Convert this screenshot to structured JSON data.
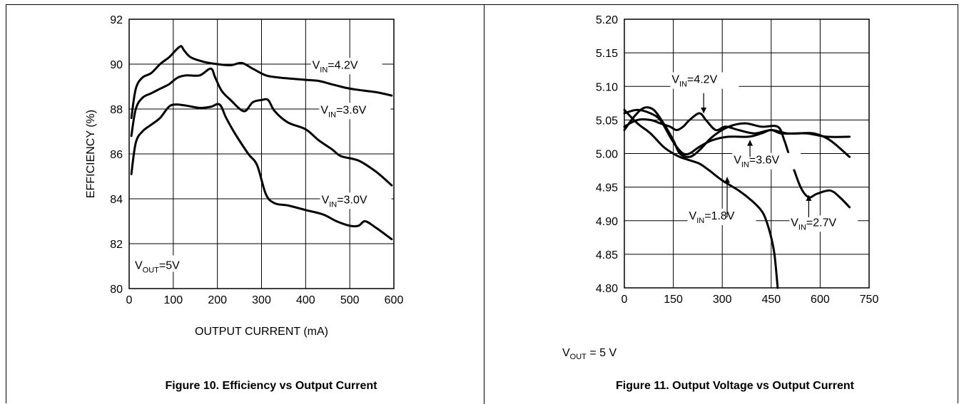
{
  "chart_data": [
    {
      "type": "line",
      "xlabel": "OUTPUT CURRENT (mA)",
      "ylabel": "EFFICIENCY (%)",
      "xlim": [
        0,
        600
      ],
      "ylim": [
        80,
        92
      ],
      "x_ticks": [
        "0",
        "100",
        "200",
        "300",
        "400",
        "500",
        "600"
      ],
      "y_ticks": [
        "80",
        "82",
        "84",
        "86",
        "88",
        "90",
        "92"
      ],
      "grid": true,
      "annotation": {
        "main": "V",
        "sub": "OUT",
        "rest": "=5V"
      },
      "series": [
        {
          "name_main": "V",
          "name_sub": "IN",
          "name_rest": "=4.2V",
          "x": [
            5,
            15,
            30,
            50,
            70,
            90,
            100,
            110,
            118,
            125,
            140,
            170,
            200,
            230,
            255,
            280,
            310,
            340,
            370,
            400,
            430,
            460,
            490,
            520,
            560,
            595
          ],
          "y": [
            87.6,
            88.9,
            89.4,
            89.6,
            90.0,
            90.3,
            90.5,
            90.7,
            90.8,
            90.6,
            90.3,
            90.1,
            90.0,
            89.95,
            90.05,
            89.8,
            89.5,
            89.4,
            89.35,
            89.3,
            89.25,
            89.1,
            88.95,
            88.85,
            88.75,
            88.6
          ]
        },
        {
          "name_main": "V",
          "name_sub": "IN",
          "name_rest": "=3.6V",
          "x": [
            5,
            15,
            30,
            50,
            70,
            90,
            110,
            130,
            160,
            185,
            195,
            210,
            230,
            260,
            280,
            300,
            315,
            330,
            360,
            400,
            430,
            460,
            480,
            520,
            560,
            595
          ],
          "y": [
            86.8,
            88.0,
            88.5,
            88.7,
            88.9,
            89.1,
            89.4,
            89.5,
            89.5,
            89.8,
            89.4,
            88.8,
            88.4,
            87.9,
            88.3,
            88.4,
            88.4,
            87.9,
            87.4,
            87.1,
            86.6,
            86.2,
            85.9,
            85.7,
            85.2,
            84.6
          ]
        },
        {
          "name_main": "V",
          "name_sub": "IN",
          "name_rest": "=3.0V",
          "x": [
            5,
            15,
            30,
            50,
            70,
            90,
            105,
            130,
            160,
            185,
            205,
            220,
            240,
            270,
            290,
            310,
            330,
            360,
            400,
            440,
            470,
            500,
            520,
            535,
            560,
            595
          ],
          "y": [
            85.1,
            86.5,
            87.0,
            87.3,
            87.6,
            88.1,
            88.2,
            88.15,
            88.05,
            88.1,
            88.2,
            87.6,
            86.9,
            86.0,
            85.5,
            84.2,
            83.8,
            83.7,
            83.5,
            83.3,
            83.0,
            82.8,
            82.8,
            83.0,
            82.7,
            82.2
          ]
        }
      ]
    },
    {
      "type": "line",
      "xlabel": "",
      "ylabel": "",
      "xlim": [
        0,
        750
      ],
      "ylim": [
        4.8,
        5.2
      ],
      "x_ticks": [
        "0",
        "150",
        "300",
        "450",
        "600",
        "750"
      ],
      "y_ticks": [
        "4.80",
        "4.85",
        "4.90",
        "4.95",
        "5.00",
        "5.05",
        "5.10",
        "5.15",
        "5.20"
      ],
      "grid": true,
      "series": [
        {
          "name_main": "V",
          "name_sub": "IN",
          "name_rest": "=4.2V",
          "x": [
            0,
            40,
            80,
            110,
            140,
            160,
            180,
            200,
            230,
            250,
            280,
            310,
            350,
            400,
            450,
            500,
            560,
            620,
            690
          ],
          "y": [
            5.04,
            5.05,
            5.05,
            5.045,
            5.04,
            5.035,
            5.04,
            5.05,
            5.06,
            5.05,
            5.035,
            5.04,
            5.035,
            5.03,
            5.035,
            5.03,
            5.03,
            5.025,
            5.025
          ]
        },
        {
          "name_main": "V",
          "name_sub": "IN",
          "name_rest": "=3.6V",
          "x": [
            0,
            40,
            80,
            110,
            140,
            160,
            180,
            200,
            230,
            270,
            320,
            380,
            420,
            450,
            480,
            530,
            580,
            630,
            690
          ],
          "y": [
            5.06,
            5.065,
            5.06,
            5.05,
            5.025,
            5.01,
            5.0,
            5.0,
            5.01,
            5.02,
            5.025,
            5.025,
            5.03,
            5.035,
            5.03,
            5.03,
            5.03,
            5.02,
            4.995
          ]
        },
        {
          "name_main": "V",
          "name_sub": "IN",
          "name_rest": "=2.7V",
          "x": [
            0,
            30,
            60,
            90,
            120,
            150,
            170,
            200,
            230,
            270,
            320,
            370,
            420,
            470,
            490,
            510,
            540,
            565,
            590,
            630,
            660,
            690
          ],
          "y": [
            5.035,
            5.055,
            5.068,
            5.065,
            5.045,
            5.02,
            5.0,
            4.995,
            5.005,
            5.025,
            5.04,
            5.045,
            5.04,
            5.04,
            5.02,
            4.99,
            4.95,
            4.935,
            4.94,
            4.945,
            4.935,
            4.92
          ]
        },
        {
          "name_main": "V",
          "name_sub": "IN",
          "name_rest": "=1.8V",
          "x": [
            0,
            40,
            80,
            120,
            150,
            170,
            200,
            230,
            260,
            300,
            350,
            390,
            420,
            435,
            450,
            460,
            470
          ],
          "y": [
            5.065,
            5.045,
            5.03,
            5.01,
            5.0,
            4.995,
            4.99,
            4.985,
            4.975,
            4.96,
            4.945,
            4.93,
            4.915,
            4.9,
            4.875,
            4.85,
            4.8
          ]
        }
      ]
    }
  ],
  "fig10": {
    "caption": "Figure 10. Efficiency vs Output Current"
  },
  "fig11": {
    "caption": "Figure 11. Output Voltage vs Output Current",
    "note": {
      "main": "V",
      "sub": "OUT",
      "rest": " = 5 V"
    }
  }
}
